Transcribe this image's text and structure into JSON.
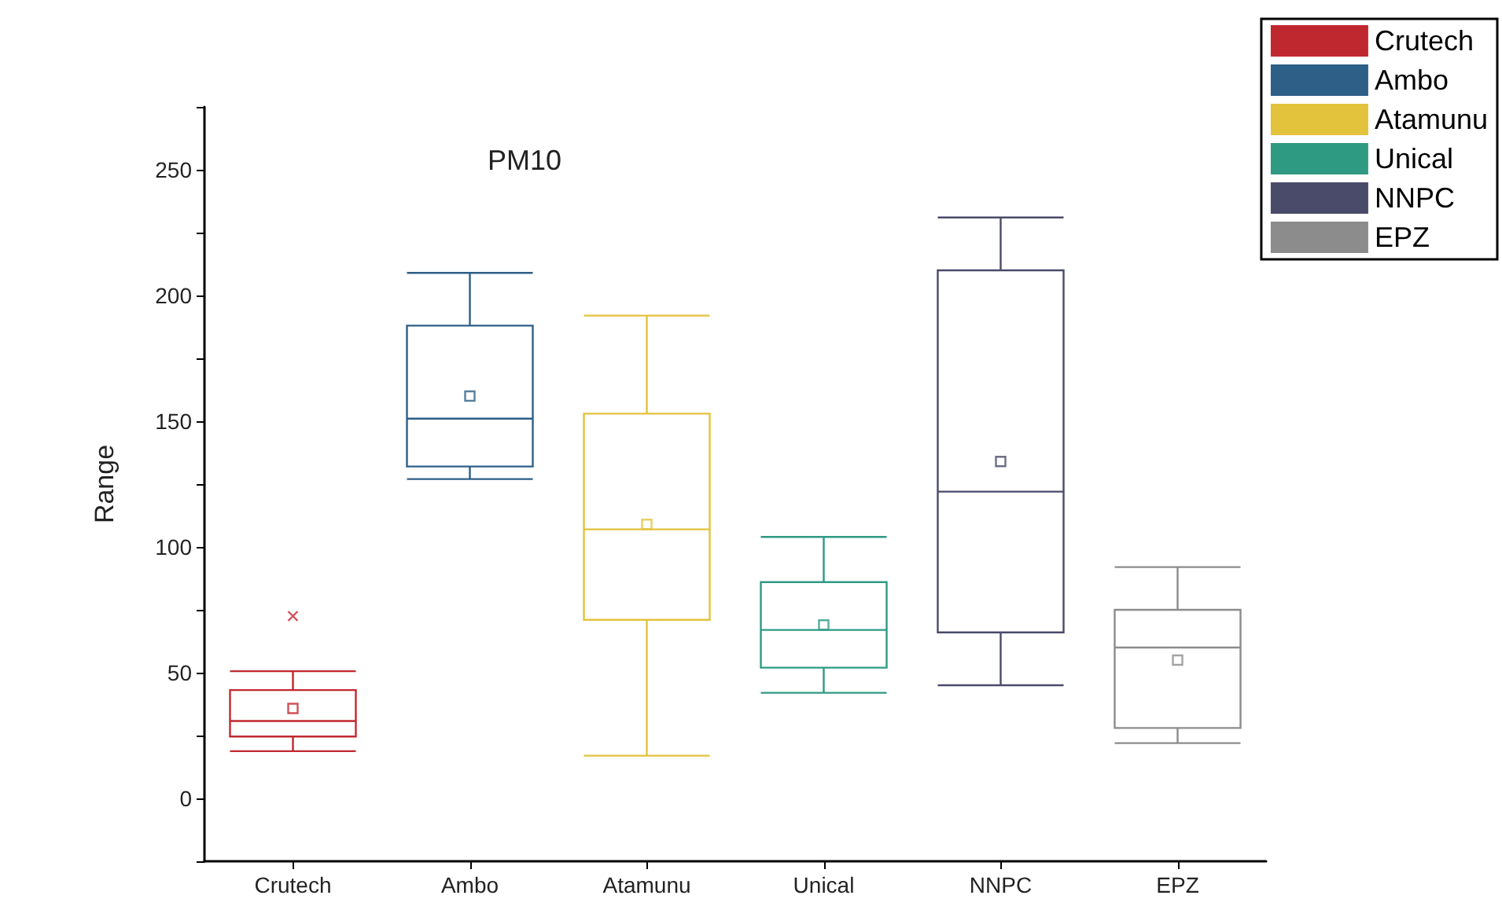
{
  "chart_data": {
    "type": "box",
    "title": "PM10",
    "ylabel": "Range",
    "categories": [
      "Crutech",
      "Ambo",
      "Atamunu",
      "Unical",
      "NNPC",
      "EPZ"
    ],
    "series": [
      {
        "name": "Crutech",
        "color": "#c0282f",
        "boxes": [
          {
            "low": 18.8,
            "q1": 24.6,
            "median": 30.8,
            "q3": 43.1,
            "high": 50.6,
            "mean": 35.8,
            "outliers": [
              72.5
            ]
          },
          null,
          null,
          null,
          null,
          null
        ]
      },
      {
        "name": "Ambo",
        "color": "#2e5f86",
        "boxes": [
          null,
          {
            "low": 127,
            "q1": 132,
            "median": 151,
            "q3": 188,
            "high": 209,
            "mean": 160
          },
          null,
          null,
          null,
          null
        ]
      },
      {
        "name": "Atamunu",
        "color": "#e3c23c",
        "boxes": [
          null,
          null,
          {
            "low": 17,
            "q1": 71,
            "median": 107,
            "q3": 153,
            "high": 192,
            "mean": 109
          },
          null,
          null,
          null
        ]
      },
      {
        "name": "Unical",
        "color": "#2f9a82",
        "boxes": [
          null,
          null,
          null,
          {
            "low": 42,
            "q1": 52,
            "median": 67,
            "q3": 86,
            "high": 104,
            "mean": 69
          },
          null,
          null
        ]
      },
      {
        "name": "NNPC",
        "color": "#4a4a6a",
        "boxes": [
          null,
          null,
          null,
          null,
          {
            "low": 45,
            "q1": 66,
            "median": 122,
            "q3": 210,
            "high": 231,
            "mean": 134
          },
          null
        ]
      },
      {
        "name": "EPZ",
        "color": "#8c8c8c",
        "boxes": [
          null,
          null,
          null,
          null,
          null,
          {
            "low": 22,
            "q1": 28,
            "median": 60,
            "q3": 75,
            "high": 92,
            "mean": 55
          }
        ]
      }
    ],
    "ylim": [
      -25,
      275
    ],
    "yticks": [
      {
        "value": -25,
        "label": null
      },
      0,
      {
        "value": 25,
        "label": null
      },
      50,
      {
        "value": 75,
        "label": null
      },
      100,
      {
        "value": 125,
        "label": null
      },
      150,
      {
        "value": 175,
        "label": null
      },
      200,
      {
        "value": 225,
        "label": null
      },
      250,
      {
        "value": 275,
        "label": null
      }
    ],
    "legend": "top right",
    "grid": false
  }
}
